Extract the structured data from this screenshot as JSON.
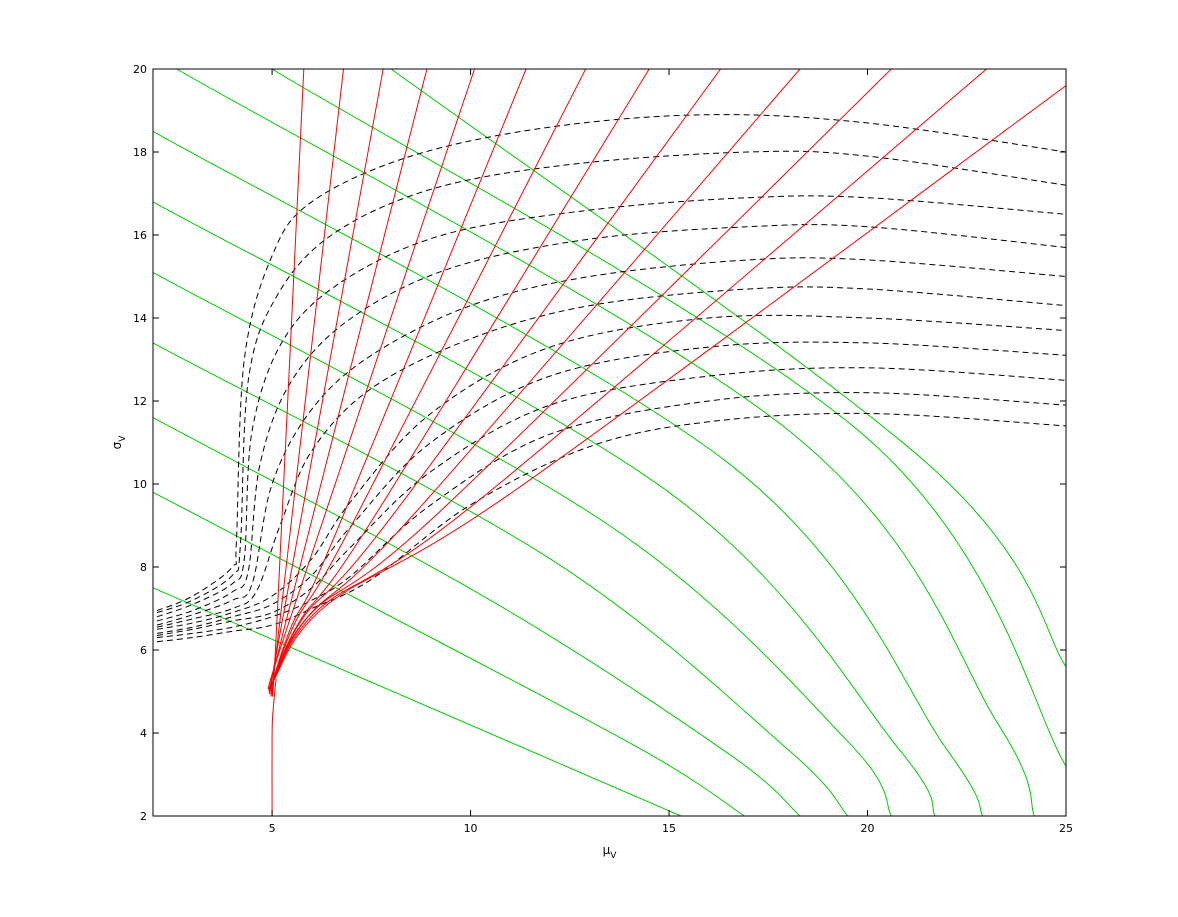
{
  "chart_data": {
    "type": "line",
    "title": "",
    "xlabel": {
      "main": "μ",
      "sub": "V"
    },
    "ylabel": {
      "main": "σ",
      "sub": "V"
    },
    "xlim": [
      2,
      25
    ],
    "ylim": [
      2,
      20
    ],
    "xticks": [
      5,
      10,
      15,
      20,
      25
    ],
    "yticks": [
      2,
      4,
      6,
      8,
      10,
      12,
      14,
      16,
      18,
      20
    ],
    "grid": false,
    "legend": "none",
    "colors": {
      "red": "#ff0000",
      "green": "#00cc00",
      "black": "#000000"
    },
    "series": [
      {
        "group": "red",
        "style": "solid",
        "x": [
          5,
          5,
          5.03,
          5.1
        ],
        "y": [
          2,
          4,
          4.6,
          5.3
        ]
      },
      {
        "group": "red",
        "style": "solid",
        "x": [
          5.0,
          5.1,
          5.8
        ],
        "y": [
          5.2,
          6.3,
          20.0
        ]
      },
      {
        "group": "red",
        "style": "solid",
        "x": [
          5.0,
          5.15,
          6.8
        ],
        "y": [
          5.2,
          6.3,
          20.0
        ]
      },
      {
        "group": "red",
        "style": "solid",
        "x": [
          5.0,
          5.2,
          7.8
        ],
        "y": [
          5.2,
          6.4,
          20.0
        ]
      },
      {
        "group": "red",
        "style": "solid",
        "x": [
          5.0,
          5.3,
          8.9
        ],
        "y": [
          5.2,
          6.5,
          20.0
        ]
      },
      {
        "group": "red",
        "style": "solid",
        "x": [
          5.0,
          5.4,
          10.1
        ],
        "y": [
          5.2,
          6.6,
          20.0
        ]
      },
      {
        "group": "red",
        "style": "solid",
        "x": [
          5.0,
          5.5,
          6.6,
          11.4
        ],
        "y": [
          5.2,
          6.6,
          8.8,
          20.0
        ]
      },
      {
        "group": "red",
        "style": "solid",
        "x": [
          5.0,
          5.6,
          7.0,
          12.9
        ],
        "y": [
          5.2,
          6.7,
          9.0,
          20.0
        ]
      },
      {
        "group": "red",
        "style": "solid",
        "x": [
          5.0,
          5.7,
          7.5,
          14.5
        ],
        "y": [
          5.2,
          6.7,
          9.1,
          20.0
        ]
      },
      {
        "group": "red",
        "style": "solid",
        "x": [
          5.0,
          5.8,
          8.0,
          16.3
        ],
        "y": [
          5.2,
          6.8,
          9.2,
          20.0
        ]
      },
      {
        "group": "red",
        "style": "solid",
        "x": [
          5.0,
          5.9,
          8.6,
          18.3
        ],
        "y": [
          5.2,
          6.8,
          9.3,
          20.0
        ]
      },
      {
        "group": "red",
        "style": "solid",
        "x": [
          5.0,
          6.0,
          9.3,
          20.6
        ],
        "y": [
          5.2,
          6.9,
          9.4,
          20.0
        ]
      },
      {
        "group": "red",
        "style": "solid",
        "x": [
          5.0,
          6.2,
          10.2,
          23.0
        ],
        "y": [
          5.2,
          7.0,
          9.6,
          20.0
        ]
      },
      {
        "group": "red",
        "style": "solid",
        "x": [
          5.0,
          6.4,
          11.2,
          25.0
        ],
        "y": [
          5.2,
          7.1,
          9.9,
          19.6
        ]
      },
      {
        "group": "green",
        "style": "solid",
        "x": [
          2,
          15.3
        ],
        "y": [
          7.5,
          2.0
        ]
      },
      {
        "group": "green",
        "style": "solid",
        "x": [
          2,
          9.0,
          14.5,
          16.9
        ],
        "y": [
          9.8,
          6.3,
          3.5,
          2.0
        ]
      },
      {
        "group": "green",
        "style": "solid",
        "x": [
          2,
          10.5,
          16.5,
          18.3
        ],
        "y": [
          11.6,
          7.2,
          3.5,
          2.0
        ]
      },
      {
        "group": "green",
        "style": "solid",
        "x": [
          2,
          12.0,
          18.0,
          19.5
        ],
        "y": [
          13.4,
          8.2,
          3.6,
          2.0
        ]
      },
      {
        "group": "green",
        "style": "solid",
        "x": [
          2,
          13.5,
          19.5,
          20.6
        ],
        "y": [
          15.1,
          9.0,
          3.8,
          2.0
        ]
      },
      {
        "group": "green",
        "style": "solid",
        "x": [
          2,
          15.0,
          20.8,
          21.7
        ],
        "y": [
          16.8,
          9.8,
          3.6,
          2.0
        ]
      },
      {
        "group": "green",
        "style": "solid",
        "x": [
          2,
          16.5,
          22.0,
          22.9
        ],
        "y": [
          18.5,
          10.5,
          3.6,
          2.0
        ]
      },
      {
        "group": "green",
        "style": "solid",
        "x": [
          2.6,
          18.0,
          23.3,
          24.2
        ],
        "y": [
          20.0,
          11.3,
          4.2,
          2.0
        ]
      },
      {
        "group": "green",
        "style": "solid",
        "x": [
          5.0,
          20.0,
          25.0
        ],
        "y": [
          20.0,
          11.1,
          3.2
        ]
      },
      {
        "group": "green",
        "style": "solid",
        "x": [
          8.0,
          21.5,
          25.0
        ],
        "y": [
          20.0,
          10.5,
          5.6
        ]
      },
      {
        "group": "black",
        "style": "dashed",
        "x": [
          2.1,
          3.0,
          4.0,
          5.0,
          6.0,
          7.5,
          10,
          13,
          16,
          20,
          25
        ],
        "y": [
          6.2,
          6.3,
          6.45,
          6.6,
          7.0,
          7.7,
          9.5,
          10.9,
          11.5,
          11.7,
          11.4
        ]
      },
      {
        "group": "black",
        "style": "dashed",
        "x": [
          2.1,
          3.0,
          4.0,
          5.0,
          6.0,
          7.0,
          9,
          12,
          16,
          20,
          25
        ],
        "y": [
          6.3,
          6.4,
          6.55,
          6.8,
          7.2,
          7.8,
          9.5,
          11.2,
          12.0,
          12.2,
          11.9
        ]
      },
      {
        "group": "black",
        "style": "dashed",
        "x": [
          2.1,
          3.0,
          4.0,
          5.0,
          6.0,
          7.0,
          9,
          12,
          16,
          20,
          25
        ],
        "y": [
          6.35,
          6.5,
          6.7,
          6.9,
          7.5,
          8.5,
          10.3,
          11.9,
          12.6,
          12.8,
          12.5
        ]
      },
      {
        "group": "black",
        "style": "dashed",
        "x": [
          2.1,
          3.0,
          4.0,
          5.0,
          6.0,
          7.0,
          9,
          12,
          16,
          20,
          25
        ],
        "y": [
          6.4,
          6.55,
          6.8,
          7.1,
          7.8,
          9.0,
          11.0,
          12.6,
          13.3,
          13.4,
          13.1
        ]
      },
      {
        "group": "black",
        "style": "dashed",
        "x": [
          2.1,
          3.0,
          4.0,
          5.0,
          6.0,
          7.0,
          9,
          12,
          16,
          20,
          25
        ],
        "y": [
          6.5,
          6.65,
          6.9,
          7.3,
          8.2,
          9.6,
          11.7,
          13.3,
          14.0,
          14.0,
          13.7
        ]
      },
      {
        "group": "black",
        "style": "dashed",
        "x": [
          2.1,
          3.0,
          4.0,
          4.6,
          5.2,
          6.0,
          7.5,
          10,
          13,
          17,
          20,
          25
        ],
        "y": [
          6.55,
          6.75,
          7.0,
          7.4,
          9.0,
          10.8,
          12.3,
          13.5,
          14.3,
          14.7,
          14.7,
          14.3
        ]
      },
      {
        "group": "black",
        "style": "dashed",
        "x": [
          2.1,
          3.0,
          4.0,
          4.5,
          5.0,
          6.0,
          7.5,
          10,
          13,
          17,
          20,
          25
        ],
        "y": [
          6.6,
          6.85,
          7.2,
          7.6,
          10.0,
          11.8,
          13.1,
          14.3,
          15.0,
          15.4,
          15.4,
          15.0
        ]
      },
      {
        "group": "black",
        "style": "dashed",
        "x": [
          2.1,
          3.0,
          4.0,
          4.4,
          4.7,
          5.5,
          7.0,
          9.5,
          13,
          17,
          20,
          25
        ],
        "y": [
          6.7,
          6.95,
          7.4,
          7.9,
          10.5,
          12.5,
          14.0,
          15.2,
          15.9,
          16.2,
          16.2,
          15.7
        ]
      },
      {
        "group": "black",
        "style": "dashed",
        "x": [
          2.1,
          3.0,
          4.0,
          4.3,
          4.5,
          5.3,
          6.8,
          9.3,
          13,
          17,
          20,
          25
        ],
        "y": [
          6.8,
          7.1,
          7.6,
          8.2,
          11.3,
          13.5,
          14.9,
          16.0,
          16.6,
          16.9,
          16.9,
          16.5
        ]
      },
      {
        "group": "black",
        "style": "dashed",
        "x": [
          2.1,
          3.0,
          4.0,
          4.2,
          4.4,
          5.1,
          6.5,
          9.0,
          12.5,
          17,
          20,
          25
        ],
        "y": [
          6.9,
          7.2,
          7.8,
          8.5,
          12.5,
          14.5,
          16.0,
          17.1,
          17.7,
          18.0,
          17.9,
          17.2
        ]
      },
      {
        "group": "black",
        "style": "dashed",
        "x": [
          2.1,
          3.0,
          4.0,
          4.1,
          4.3,
          5.0,
          6.0,
          8.5,
          12,
          16,
          20,
          25
        ],
        "y": [
          6.95,
          7.3,
          8.0,
          8.6,
          13.0,
          15.5,
          16.8,
          17.9,
          18.6,
          18.9,
          18.7,
          18.0
        ]
      }
    ]
  }
}
